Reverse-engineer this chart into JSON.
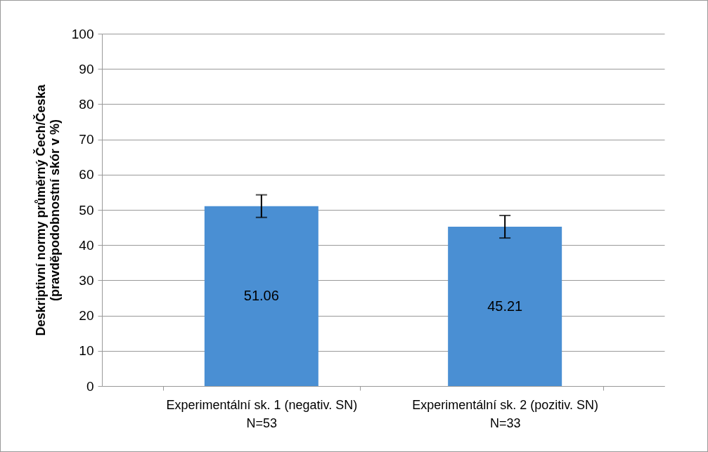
{
  "chart_data": {
    "type": "bar",
    "ylabel": "Deskriptivní normy průměrný Čech/Česka\n(pravděpodobnostní skór v %)",
    "categories": [
      "Experimentální sk. 1 (negativ. SN)\nN=53",
      "Experimentální sk. 2 (pozitiv. SN)\nN=33"
    ],
    "values": [
      51.06,
      45.21
    ],
    "errors": [
      3.2,
      3.2
    ],
    "color": "#4a8fd3",
    "ylim": [
      0,
      100
    ],
    "yticks": [
      0,
      10,
      20,
      30,
      40,
      50,
      60,
      70,
      80,
      90,
      100
    ],
    "grid": "y",
    "data_labels": true
  }
}
